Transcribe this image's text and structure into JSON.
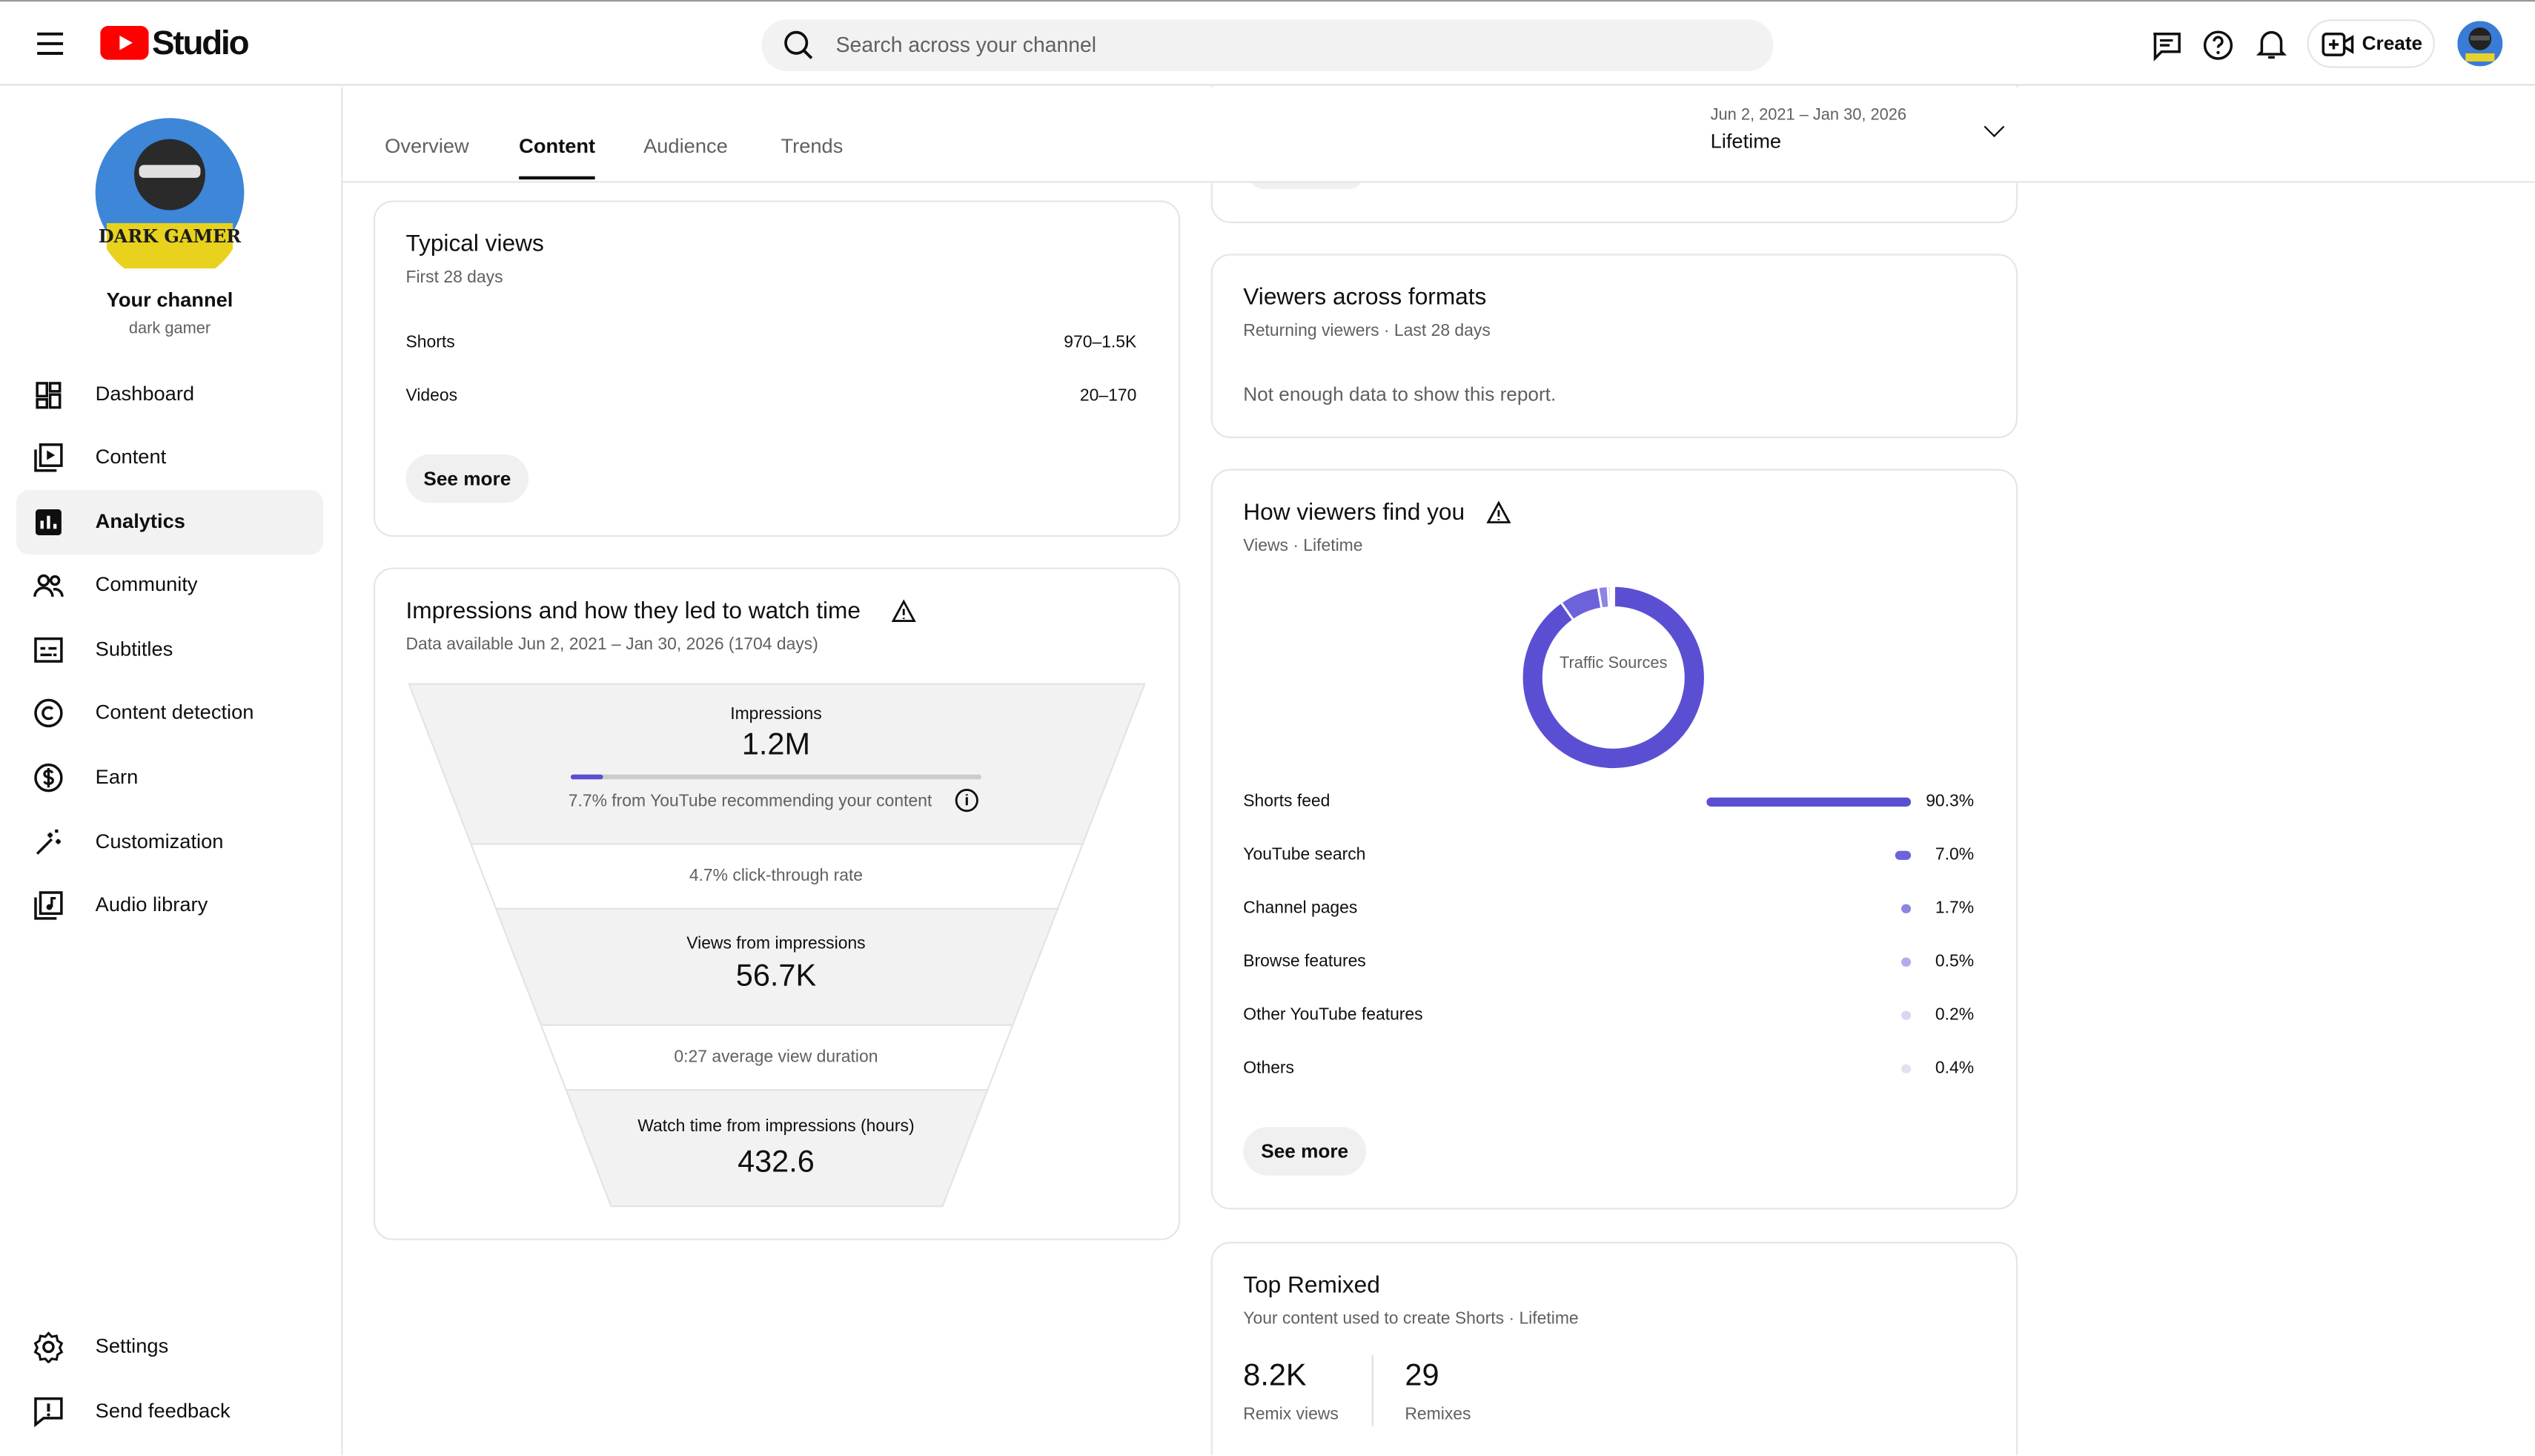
{
  "header": {
    "logo": "Studio",
    "search_placeholder": "Search across your channel",
    "create": "Create"
  },
  "sidebar": {
    "avatar_label": "DARK GAMER",
    "channel_title": "Your channel",
    "channel_name": "dark gamer",
    "nav": [
      "Dashboard",
      "Content",
      "Analytics",
      "Community",
      "Subtitles",
      "Content detection",
      "Earn",
      "Customization",
      "Audio library"
    ],
    "active_nav": 2,
    "bottom_nav": [
      "Settings",
      "Send feedback"
    ]
  },
  "tabs": {
    "items": [
      "Overview",
      "Content",
      "Audience",
      "Trends"
    ],
    "active": 1
  },
  "date_range": {
    "range": "Jun 2, 2021 – Jan 30, 2026",
    "label": "Lifetime"
  },
  "typical_views": {
    "title": "Typical views",
    "subtitle": "First 28 days",
    "rows": [
      [
        "Shorts",
        "970–1.5K"
      ],
      [
        "Videos",
        "20–170"
      ]
    ],
    "button": "See more"
  },
  "impressions": {
    "title": "Impressions and how they led to watch time",
    "subtitle": "Data available Jun 2, 2021 – Jan 30, 2026 (1704 days)",
    "impressions_label": "Impressions",
    "impressions_value": "1.2M",
    "recommend_note": "7.7% from YouTube recommending your content",
    "ctr": "4.7% click-through rate",
    "views_label": "Views from impressions",
    "views_value": "56.7K",
    "avd": "0:27 average view duration",
    "watch_label": "Watch time from impressions (hours)",
    "watch_value": "432.6"
  },
  "viewers_across_formats": {
    "title": "Viewers across formats",
    "subtitle": "Returning viewers · Last 28 days",
    "message": "Not enough data to show this report."
  },
  "traffic": {
    "title": "How viewers find you",
    "subtitle": "Views · Lifetime",
    "center_label": "Traffic Sources",
    "items": [
      {
        "name": "Shorts feed",
        "value": 90.3,
        "label": "90.3%",
        "color": "#5a4fd3"
      },
      {
        "name": "YouTube search",
        "value": 7.0,
        "label": "7.0%",
        "color": "#6c62da"
      },
      {
        "name": "Channel pages",
        "value": 1.7,
        "label": "1.7%",
        "color": "#8d85e2"
      },
      {
        "name": "Browse features",
        "value": 0.5,
        "label": "0.5%",
        "color": "#b2acec"
      },
      {
        "name": "Other YouTube features",
        "value": 0.2,
        "label": "0.2%",
        "color": "#d9d6f4"
      },
      {
        "name": "Others",
        "value": 0.4,
        "label": "0.4%",
        "color": "#e3e2ec"
      }
    ],
    "button": "See more"
  },
  "top_remixed": {
    "title": "Top Remixed",
    "subtitle": "Your content used to create Shorts · Lifetime",
    "stats": [
      {
        "value": "8.2K",
        "label": "Remix views"
      },
      {
        "value": "29",
        "label": "Remixes"
      }
    ]
  }
}
